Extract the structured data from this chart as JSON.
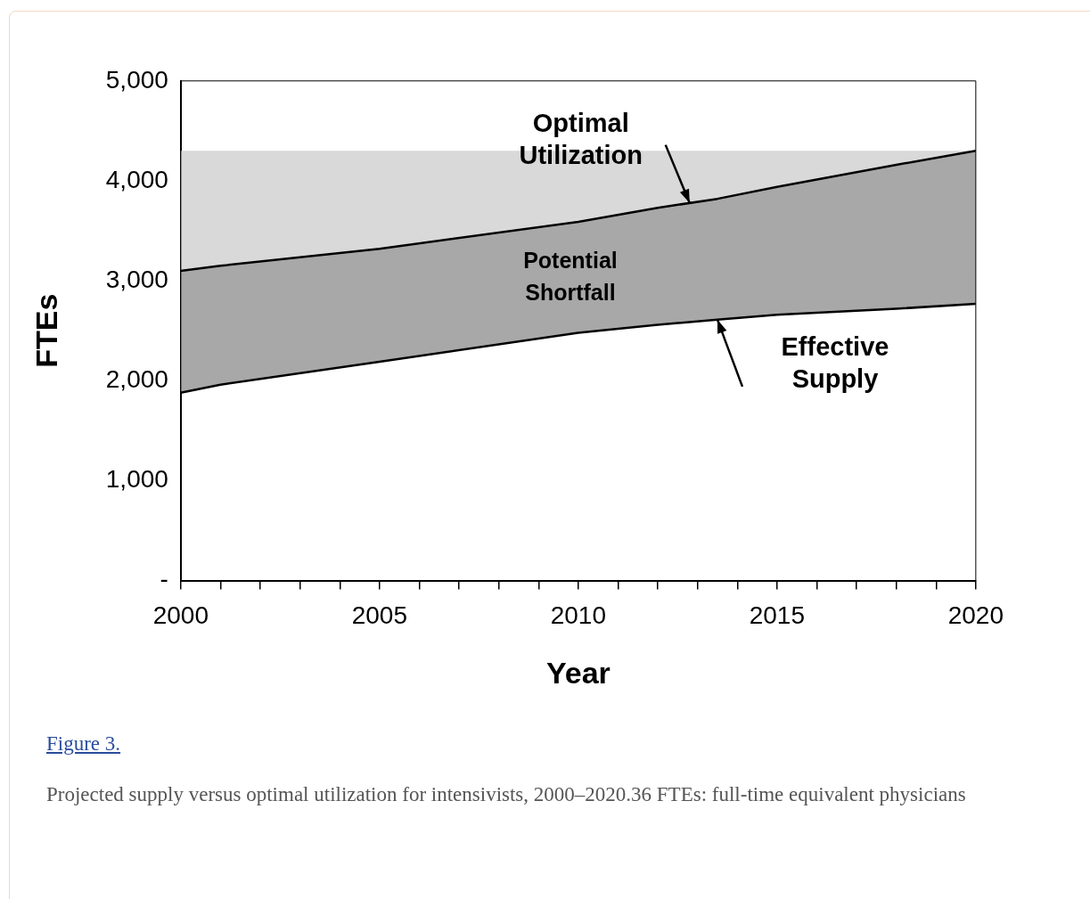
{
  "chart_data": {
    "type": "line",
    "xlabel": "Year",
    "ylabel": "FTEs",
    "x": [
      2000,
      2001,
      2005,
      2010,
      2012,
      2013.5,
      2015,
      2018,
      2020
    ],
    "series": [
      {
        "type": "line",
        "color": "#000000",
        "values": [
          1880,
          1960,
          2190,
          2480,
          2560,
          2610,
          2660,
          2720,
          2770
        ]
      },
      {
        "type": "area",
        "color": "#a8a8a8",
        "values": [
          3100,
          3150,
          3320,
          3590,
          3730,
          3820,
          3940,
          4160,
          4300
        ]
      }
    ],
    "bands": [
      {
        "axis": "y",
        "from": 3100,
        "to": 4300,
        "color": "#d9d9d9"
      }
    ],
    "xlim": [
      2000,
      2020
    ],
    "xticks": [
      2000,
      {
        "value": 2001,
        "label": null
      },
      {
        "value": 2002,
        "label": null
      },
      {
        "value": 2003,
        "label": null
      },
      {
        "value": 2004,
        "label": null
      },
      2005,
      {
        "value": 2006,
        "label": null
      },
      {
        "value": 2007,
        "label": null
      },
      {
        "value": 2008,
        "label": null
      },
      {
        "value": 2009,
        "label": null
      },
      2010,
      {
        "value": 2011,
        "label": null
      },
      {
        "value": 2012,
        "label": null
      },
      {
        "value": 2013,
        "label": null
      },
      {
        "value": 2014,
        "label": null
      },
      2015,
      {
        "value": 2016,
        "label": null
      },
      {
        "value": 2017,
        "label": null
      },
      {
        "value": 2018,
        "label": null
      },
      {
        "value": 2019,
        "label": null
      },
      2020
    ],
    "ylim": [
      0,
      5000
    ],
    "yticks": [
      {
        "value": 0,
        "label": "-"
      },
      {
        "value": 1000,
        "label": "1,000"
      },
      {
        "value": 2000,
        "label": "2,000"
      },
      {
        "value": 3000,
        "label": "3,000"
      },
      {
        "value": 4000,
        "label": "4,000"
      },
      {
        "value": 5000,
        "label": "5,000"
      }
    ],
    "grid": false,
    "legend": false,
    "marker": "none",
    "line_style": "solid",
    "annotations": [
      {
        "text": "Optimal Utilization",
        "x": 2012.8,
        "y": 3780
      },
      "Potential Shortfall",
      {
        "text": "Effective Supply",
        "x": 2013.5,
        "y": 2610
      },
      "Figure 3.",
      "Projected supply versus optimal utilization for intensivists, 2000–2020.36 FTEs: full-time equivalent physicians"
    ]
  }
}
